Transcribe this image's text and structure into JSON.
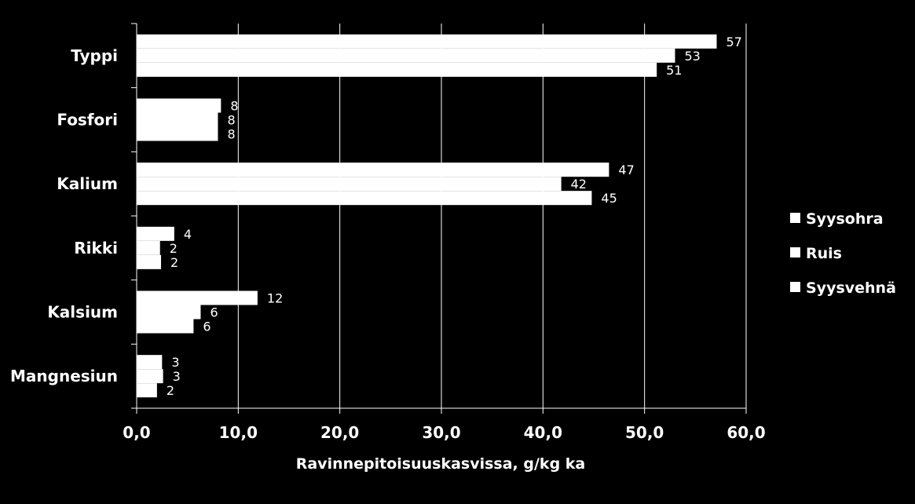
{
  "chart_data": {
    "type": "bar",
    "orientation": "horizontal",
    "categories": [
      "Typpi",
      "Fosfori",
      "Kalium",
      "Rikki",
      "Kalsium",
      "Mangnesiun"
    ],
    "series": [
      {
        "name": "Syysohra",
        "values": [
          57.1,
          8.3,
          46.5,
          3.7,
          11.9,
          2.5
        ],
        "labels": [
          "57",
          "8",
          "47",
          "4",
          "12",
          "3"
        ]
      },
      {
        "name": "Ruis",
        "values": [
          53.0,
          8.0,
          41.8,
          2.3,
          6.3,
          2.6
        ],
        "labels": [
          "53",
          "8",
          "42",
          "2",
          "6",
          "3"
        ]
      },
      {
        "name": "Syysvehnä",
        "values": [
          51.2,
          8.0,
          44.8,
          2.4,
          5.6,
          2.0
        ],
        "labels": [
          "51",
          "8",
          "45",
          "2",
          "6",
          "2"
        ]
      }
    ],
    "xlabel": "Ravinnepitoisuuskasvissa, g/kg ka",
    "xlim": [
      0,
      60
    ],
    "xticks": [
      "0,0",
      "10,0",
      "20,0",
      "30,0",
      "40,0",
      "50,0",
      "60,0"
    ],
    "grid": true,
    "legend": "right",
    "colors": {
      "background": "#000000",
      "bars": "#ffffff",
      "grid": "#ffffff",
      "text": "#ffffff"
    }
  }
}
